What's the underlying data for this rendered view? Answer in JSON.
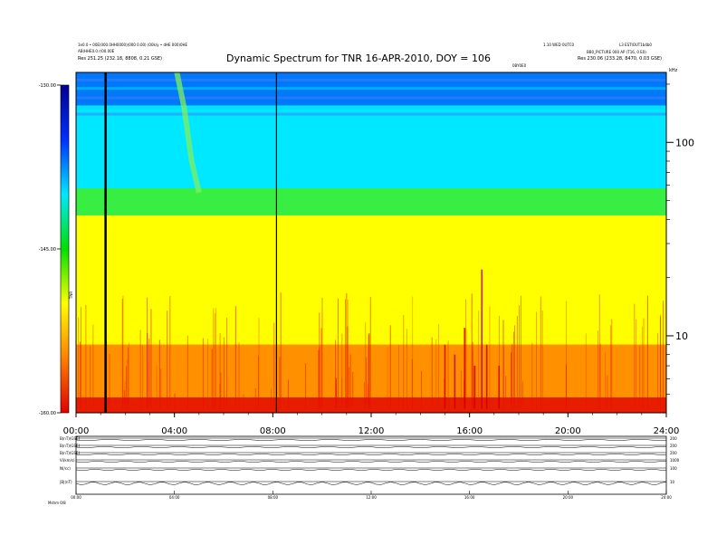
{
  "header": {
    "top_left_1": "1e0.0 • 00E(000.0HH0000)(000 0.00) (00k/y • dHE 000)0HE",
    "top_left_2": "AB(HHE0.0 r/00.00E",
    "top_left_3": "Res   251.25 (232.18, 8808, 0.21 GSE)",
    "top_right_1": "1.10 WED 0UTC0",
    "top_right_2": "L3 ESTIOUT1b4b0",
    "top_right_3": "BB0_PICTURE 000 AP (T16, 0 E0)",
    "top_right_4": "Res   230.06 (233.28, 8470, 0.03 GSE)",
    "top_center_mark": "0BY0E0"
  },
  "colorbar": {
    "tick_labels": [
      "-130.00",
      "-145.00",
      "-160.00"
    ],
    "axis_label": "TNR",
    "colors": [
      "#e00000",
      "#ff8000",
      "#ffff00",
      "#00e000",
      "#00e8ff",
      "#0030ff",
      "#000090"
    ]
  },
  "chart_data": {
    "type": "heatmap",
    "title": "Dynamic Spectrum for TNR 16-APR-2010, DOY = 106",
    "x_tick_labels": [
      "00:00",
      "04:00",
      "08:00",
      "12:00",
      "16:00",
      "20:00",
      "24:00"
    ],
    "xlim": [
      0,
      24
    ],
    "y_scale": "log",
    "ylim": [
      4,
      230
    ],
    "y_unit_label": "kHz",
    "y_tick_labels": [
      "100",
      "10"
    ],
    "y_ticks": [
      100,
      10
    ],
    "intensity_range": [
      -160,
      -130
    ],
    "bands": [
      {
        "name": "low-frequency red band",
        "from": 4,
        "to": 4.8,
        "level": -159
      },
      {
        "name": "orange band",
        "from": 4.8,
        "to": 9,
        "level": -155
      },
      {
        "name": "yellow band",
        "from": 9,
        "to": 42,
        "level": -150
      },
      {
        "name": "green band",
        "from": 42,
        "to": 58,
        "level": -143
      },
      {
        "name": "cyan band",
        "from": 58,
        "to": 155,
        "level": -137
      },
      {
        "name": "blue band",
        "from": 155,
        "to": 230,
        "level": -133
      }
    ],
    "vertical_lines_hours": [
      1.2,
      8.15
    ],
    "burst_track": [
      [
        4.1,
        230
      ],
      [
        4.4,
        150
      ],
      [
        4.7,
        80
      ],
      [
        5.0,
        55
      ]
    ]
  },
  "strip_panels": {
    "labels": [
      "B(nT)(GSE)",
      "B(nT)(GSE)",
      "B(nT)(GSE)",
      "Vi(km/s)",
      "N(/cc)",
      "|B|(nT)"
    ],
    "right_labels": [
      "200",
      "200",
      "200",
      "1000",
      "100",
      "10"
    ],
    "x_tick_labels": [
      "00:00",
      "04:00",
      "08:00",
      "12:00",
      "16:00",
      "20:00",
      "24:00"
    ],
    "footer_left": "Mshm  0/8"
  }
}
